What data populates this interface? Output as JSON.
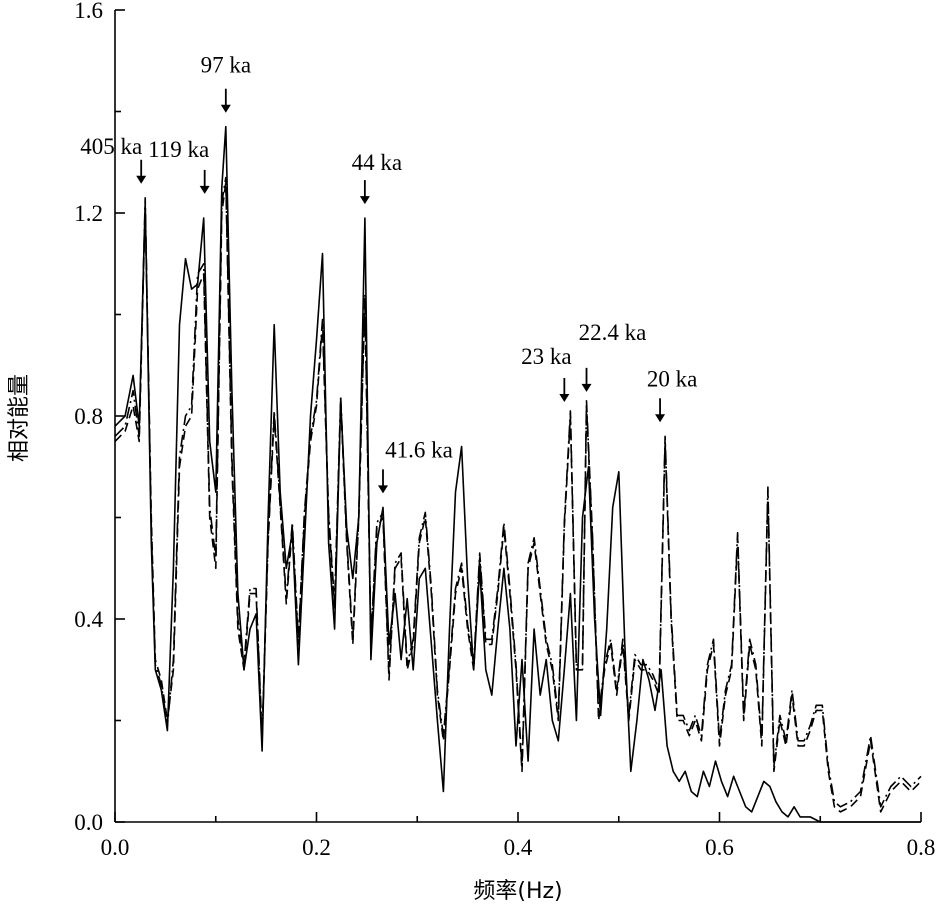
{
  "chart_data": {
    "type": "line",
    "title": "",
    "xlabel": "频率(Hz)",
    "ylabel": "相对能量",
    "xlim": [
      0.0,
      0.8
    ],
    "ylim": [
      0.0,
      1.6
    ],
    "x_ticks": [
      "0.0",
      "0.2",
      "0.4",
      "0.6",
      "0.8"
    ],
    "y_ticks": [
      "0.0",
      "0.4",
      "0.8",
      "1.2",
      "1.6"
    ],
    "grid": false,
    "legend": "none",
    "series": [
      {
        "style": "solid",
        "x": [
          0.0,
          0.01,
          0.018,
          0.024,
          0.03,
          0.036,
          0.04,
          0.046,
          0.052,
          0.058,
          0.064,
          0.07,
          0.076,
          0.082,
          0.088,
          0.094,
          0.1,
          0.106,
          0.11,
          0.116,
          0.122,
          0.128,
          0.134,
          0.14,
          0.146,
          0.152,
          0.158,
          0.164,
          0.17,
          0.176,
          0.182,
          0.188,
          0.194,
          0.2,
          0.206,
          0.212,
          0.218,
          0.224,
          0.23,
          0.236,
          0.242,
          0.248,
          0.254,
          0.26,
          0.266,
          0.272,
          0.278,
          0.284,
          0.29,
          0.296,
          0.302,
          0.308,
          0.314,
          0.32,
          0.326,
          0.332,
          0.338,
          0.344,
          0.35,
          0.356,
          0.362,
          0.368,
          0.374,
          0.38,
          0.386,
          0.392,
          0.398,
          0.404,
          0.41,
          0.416,
          0.422,
          0.428,
          0.434,
          0.44,
          0.446,
          0.452,
          0.458,
          0.464,
          0.47,
          0.476,
          0.482,
          0.488,
          0.494,
          0.5,
          0.506,
          0.512,
          0.518,
          0.524,
          0.53,
          0.536,
          0.542,
          0.548,
          0.554,
          0.56,
          0.566,
          0.572,
          0.578,
          0.584,
          0.59,
          0.596,
          0.602,
          0.608,
          0.614,
          0.62,
          0.626,
          0.632,
          0.638,
          0.644,
          0.65,
          0.656,
          0.662,
          0.668,
          0.674,
          0.68,
          0.69,
          0.7,
          0.72,
          0.74,
          0.76,
          0.78,
          0.8
        ],
        "y": [
          0.78,
          0.8,
          0.88,
          0.78,
          1.22,
          0.55,
          0.3,
          0.26,
          0.18,
          0.5,
          0.98,
          1.11,
          1.05,
          1.06,
          1.19,
          0.75,
          0.65,
          1.25,
          1.37,
          0.85,
          0.45,
          0.3,
          0.38,
          0.41,
          0.14,
          0.6,
          0.98,
          0.65,
          0.5,
          0.57,
          0.31,
          0.55,
          0.8,
          0.95,
          1.12,
          0.55,
          0.38,
          0.83,
          0.58,
          0.48,
          0.6,
          1.19,
          0.32,
          0.55,
          0.62,
          0.35,
          0.45,
          0.32,
          0.44,
          0.3,
          0.48,
          0.5,
          0.35,
          0.2,
          0.06,
          0.38,
          0.65,
          0.74,
          0.48,
          0.3,
          0.5,
          0.3,
          0.25,
          0.38,
          0.5,
          0.38,
          0.15,
          0.32,
          0.12,
          0.38,
          0.25,
          0.32,
          0.2,
          0.16,
          0.3,
          0.45,
          0.2,
          0.6,
          0.7,
          0.4,
          0.21,
          0.38,
          0.62,
          0.69,
          0.35,
          0.1,
          0.2,
          0.32,
          0.28,
          0.22,
          0.3,
          0.15,
          0.1,
          0.08,
          0.1,
          0.06,
          0.05,
          0.1,
          0.07,
          0.12,
          0.08,
          0.05,
          0.09,
          0.06,
          0.03,
          0.02,
          0.05,
          0.08,
          0.07,
          0.04,
          0.02,
          0.01,
          0.03,
          0.01,
          0.01,
          0.0,
          0.0,
          0.0,
          0.0,
          0.0,
          0.0
        ]
      },
      {
        "style": "dashed",
        "x": [
          0.0,
          0.01,
          0.018,
          0.024,
          0.03,
          0.036,
          0.04,
          0.046,
          0.052,
          0.058,
          0.064,
          0.07,
          0.076,
          0.082,
          0.088,
          0.094,
          0.1,
          0.106,
          0.11,
          0.116,
          0.122,
          0.128,
          0.134,
          0.14,
          0.146,
          0.152,
          0.158,
          0.164,
          0.17,
          0.176,
          0.182,
          0.188,
          0.194,
          0.2,
          0.206,
          0.212,
          0.218,
          0.224,
          0.23,
          0.236,
          0.242,
          0.248,
          0.254,
          0.26,
          0.266,
          0.272,
          0.278,
          0.284,
          0.29,
          0.296,
          0.302,
          0.308,
          0.314,
          0.32,
          0.326,
          0.332,
          0.338,
          0.344,
          0.35,
          0.356,
          0.362,
          0.368,
          0.374,
          0.38,
          0.386,
          0.392,
          0.398,
          0.404,
          0.41,
          0.416,
          0.422,
          0.428,
          0.434,
          0.44,
          0.446,
          0.452,
          0.458,
          0.464,
          0.468,
          0.474,
          0.48,
          0.486,
          0.492,
          0.498,
          0.504,
          0.51,
          0.516,
          0.522,
          0.528,
          0.534,
          0.54,
          0.546,
          0.552,
          0.558,
          0.564,
          0.57,
          0.576,
          0.582,
          0.588,
          0.594,
          0.6,
          0.606,
          0.612,
          0.618,
          0.624,
          0.63,
          0.636,
          0.642,
          0.648,
          0.654,
          0.66,
          0.666,
          0.672,
          0.678,
          0.684,
          0.69,
          0.696,
          0.702,
          0.708,
          0.714,
          0.72,
          0.73,
          0.74,
          0.75,
          0.76,
          0.77,
          0.78,
          0.79,
          0.8
        ],
        "y": [
          0.75,
          0.77,
          0.82,
          0.75,
          1.21,
          0.6,
          0.32,
          0.28,
          0.2,
          0.3,
          0.7,
          0.78,
          0.8,
          1.05,
          1.08,
          0.6,
          0.5,
          1.2,
          1.26,
          0.7,
          0.38,
          0.3,
          0.45,
          0.45,
          0.16,
          0.55,
          0.8,
          0.62,
          0.43,
          0.58,
          0.35,
          0.6,
          0.75,
          0.82,
          0.98,
          0.6,
          0.42,
          0.83,
          0.55,
          0.35,
          0.6,
          1.03,
          0.35,
          0.58,
          0.6,
          0.28,
          0.5,
          0.52,
          0.3,
          0.35,
          0.55,
          0.6,
          0.45,
          0.25,
          0.16,
          0.3,
          0.45,
          0.5,
          0.38,
          0.3,
          0.52,
          0.35,
          0.35,
          0.45,
          0.58,
          0.45,
          0.3,
          0.1,
          0.5,
          0.55,
          0.45,
          0.35,
          0.3,
          0.2,
          0.58,
          0.8,
          0.3,
          0.3,
          0.82,
          0.55,
          0.2,
          0.3,
          0.35,
          0.25,
          0.35,
          0.2,
          0.32,
          0.3,
          0.3,
          0.28,
          0.25,
          0.75,
          0.4,
          0.2,
          0.2,
          0.17,
          0.2,
          0.16,
          0.3,
          0.35,
          0.15,
          0.25,
          0.3,
          0.56,
          0.2,
          0.35,
          0.3,
          0.15,
          0.65,
          0.1,
          0.2,
          0.15,
          0.25,
          0.15,
          0.15,
          0.18,
          0.22,
          0.22,
          0.1,
          0.03,
          0.02,
          0.03,
          0.05,
          0.16,
          0.02,
          0.06,
          0.08,
          0.06,
          0.08
        ]
      },
      {
        "style": "dash-dot",
        "x": [
          0.0,
          0.01,
          0.018,
          0.024,
          0.03,
          0.036,
          0.04,
          0.046,
          0.052,
          0.058,
          0.064,
          0.07,
          0.076,
          0.082,
          0.088,
          0.094,
          0.1,
          0.106,
          0.11,
          0.116,
          0.122,
          0.128,
          0.134,
          0.14,
          0.146,
          0.152,
          0.158,
          0.164,
          0.17,
          0.176,
          0.182,
          0.188,
          0.194,
          0.2,
          0.206,
          0.212,
          0.218,
          0.224,
          0.23,
          0.236,
          0.242,
          0.248,
          0.254,
          0.26,
          0.266,
          0.272,
          0.278,
          0.284,
          0.29,
          0.296,
          0.302,
          0.308,
          0.314,
          0.32,
          0.326,
          0.332,
          0.338,
          0.344,
          0.35,
          0.356,
          0.362,
          0.368,
          0.374,
          0.38,
          0.386,
          0.392,
          0.398,
          0.404,
          0.41,
          0.416,
          0.422,
          0.428,
          0.434,
          0.44,
          0.446,
          0.452,
          0.458,
          0.464,
          0.468,
          0.474,
          0.48,
          0.486,
          0.492,
          0.498,
          0.504,
          0.51,
          0.516,
          0.522,
          0.528,
          0.534,
          0.54,
          0.546,
          0.552,
          0.558,
          0.564,
          0.57,
          0.576,
          0.582,
          0.588,
          0.594,
          0.6,
          0.606,
          0.612,
          0.618,
          0.624,
          0.63,
          0.636,
          0.642,
          0.648,
          0.654,
          0.66,
          0.666,
          0.672,
          0.678,
          0.684,
          0.69,
          0.696,
          0.702,
          0.708,
          0.714,
          0.72,
          0.73,
          0.74,
          0.75,
          0.76,
          0.77,
          0.78,
          0.79,
          0.8
        ],
        "y": [
          0.76,
          0.78,
          0.85,
          0.76,
          1.23,
          0.58,
          0.31,
          0.27,
          0.19,
          0.32,
          0.72,
          0.8,
          0.82,
          1.08,
          1.1,
          0.62,
          0.52,
          1.22,
          1.27,
          0.72,
          0.4,
          0.31,
          0.46,
          0.46,
          0.17,
          0.56,
          0.81,
          0.63,
          0.44,
          0.59,
          0.36,
          0.61,
          0.76,
          0.83,
          0.99,
          0.61,
          0.43,
          0.84,
          0.56,
          0.36,
          0.61,
          1.04,
          0.36,
          0.59,
          0.61,
          0.29,
          0.51,
          0.53,
          0.31,
          0.36,
          0.56,
          0.61,
          0.46,
          0.26,
          0.17,
          0.31,
          0.46,
          0.51,
          0.39,
          0.31,
          0.53,
          0.36,
          0.36,
          0.46,
          0.59,
          0.46,
          0.31,
          0.11,
          0.51,
          0.56,
          0.46,
          0.36,
          0.31,
          0.21,
          0.59,
          0.81,
          0.31,
          0.31,
          0.83,
          0.56,
          0.21,
          0.31,
          0.36,
          0.26,
          0.36,
          0.21,
          0.33,
          0.31,
          0.31,
          0.29,
          0.26,
          0.76,
          0.41,
          0.21,
          0.21,
          0.18,
          0.21,
          0.17,
          0.31,
          0.36,
          0.16,
          0.26,
          0.31,
          0.57,
          0.21,
          0.36,
          0.31,
          0.16,
          0.66,
          0.11,
          0.21,
          0.16,
          0.26,
          0.16,
          0.16,
          0.19,
          0.23,
          0.23,
          0.11,
          0.04,
          0.03,
          0.04,
          0.06,
          0.17,
          0.03,
          0.07,
          0.09,
          0.07,
          0.09
        ]
      }
    ],
    "annotations": [
      {
        "label": "405 ka",
        "x": 0.026,
        "y": 1.23
      },
      {
        "label": "119 ka",
        "x": 0.089,
        "y": 1.21
      },
      {
        "label": "97 ka",
        "x": 0.11,
        "y": 1.37
      },
      {
        "label": "44 ka",
        "x": 0.248,
        "y": 1.19
      },
      {
        "label": "41.6 ka",
        "x": 0.266,
        "y": 0.62
      },
      {
        "label": "23 ka",
        "x": 0.446,
        "y": 0.8
      },
      {
        "label": "22.4 ka",
        "x": 0.468,
        "y": 0.82
      },
      {
        "label": "20 ka",
        "x": 0.541,
        "y": 0.76
      }
    ]
  }
}
